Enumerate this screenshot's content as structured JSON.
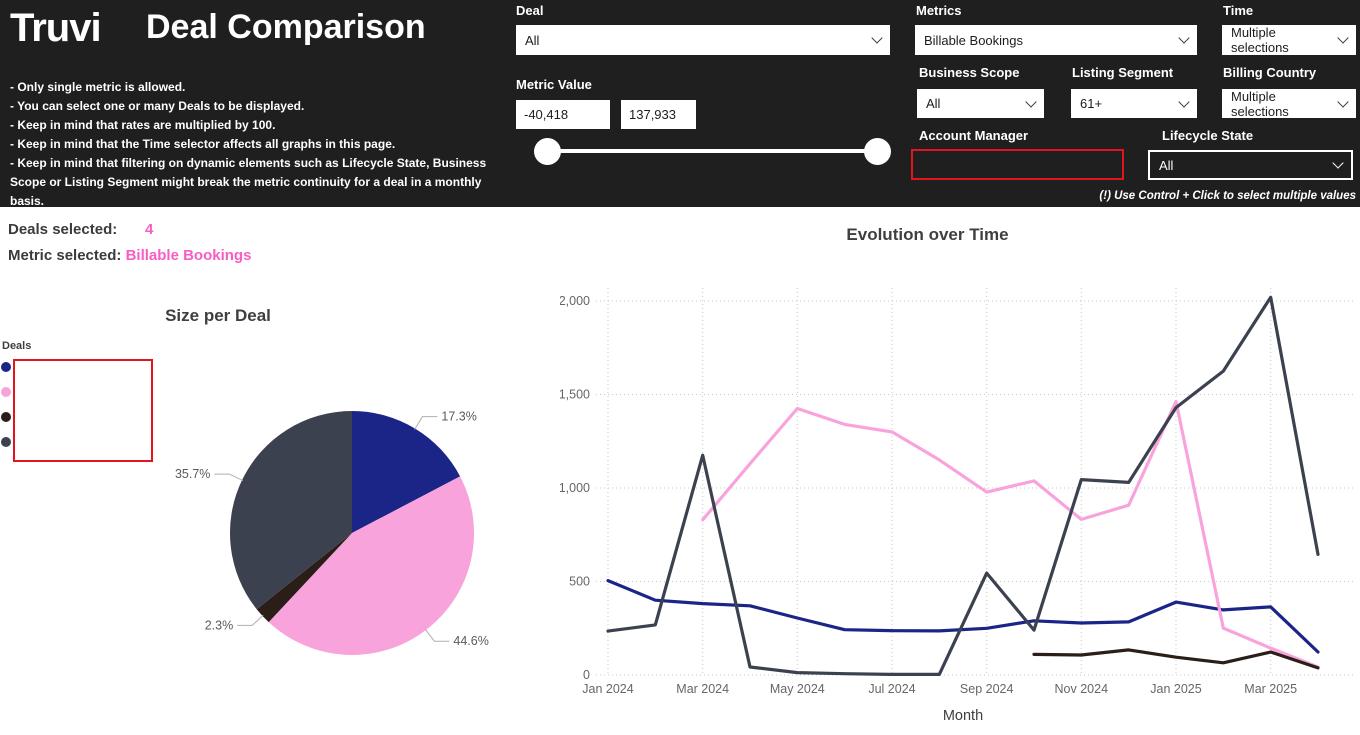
{
  "header": {
    "brand": "Truvi",
    "title": "Deal Comparison",
    "notes": [
      "- Only single metric is allowed.",
      "- You can select one or many Deals to be displayed.",
      "- Keep in mind that rates are multiplied by 100.",
      "- Keep in mind that the Time selector affects all graphs in this page.",
      "- Keep in mind that filtering on dynamic elements such as Lifecycle State, Business Scope or Listing Segment might break the metric continuity for a deal in a monthly basis."
    ],
    "multi_select_hint": "(!) Use Control + Click to select multiple values",
    "filters": {
      "deal": {
        "label": "Deal",
        "value": "All"
      },
      "metric_value": {
        "label": "Metric Value",
        "min": "-40,418",
        "max": "137,933"
      },
      "metrics": {
        "label": "Metrics",
        "value": "Billable Bookings"
      },
      "time": {
        "label": "Time",
        "value": "Multiple selections"
      },
      "business_scope": {
        "label": "Business Scope",
        "value": "All"
      },
      "listing_segment": {
        "label": "Listing Segment",
        "value": "61+"
      },
      "billing_country": {
        "label": "Billing Country",
        "value": "Multiple selections"
      },
      "account_manager": {
        "label": "Account Manager",
        "value": ""
      },
      "lifecycle_state": {
        "label": "Lifecycle State",
        "value": "All"
      }
    }
  },
  "summary": {
    "deals_selected_label": "Deals selected:",
    "deals_selected_value": "4",
    "metric_selected_label": "Metric selected:",
    "metric_selected_value": "Billable Bookings"
  },
  "colors": {
    "header_bg": "#1f1f1f",
    "accent_pink": "#f95cc5",
    "alert_red": "#e0161c",
    "grid": "#c9c9c9",
    "axis_text": "#666666"
  },
  "chart_data": [
    {
      "type": "pie",
      "title": "Size per Deal",
      "legend_title": "Deals",
      "legend_position": "left",
      "legend_labels_redacted": true,
      "labels": [
        "17.3%",
        "44.6%",
        "2.3%",
        "35.7%"
      ],
      "values": [
        17.3,
        44.6,
        2.3,
        35.7
      ],
      "colors": [
        "#1b2588",
        "#f9a3dc",
        "#2b1d17",
        "#3b414e"
      ]
    },
    {
      "type": "line",
      "title": "Evolution over Time",
      "xlabel": "Month",
      "x": [
        "Jan 2024",
        "Feb 2024",
        "Mar 2024",
        "Apr 2024",
        "May 2024",
        "Jun 2024",
        "Jul 2024",
        "Aug 2024",
        "Sep 2024",
        "Oct 2024",
        "Nov 2024",
        "Dec 2024",
        "Jan 2025",
        "Feb 2025",
        "Mar 2025",
        "Apr 2025"
      ],
      "x_tick_labels": [
        "Jan 2024",
        "Mar 2024",
        "May 2024",
        "Jul 2024",
        "Sep 2024",
        "Nov 2024",
        "Jan 2025",
        "Mar 2025"
      ],
      "yticks": [
        "0",
        "500",
        "1,000",
        "1,500",
        "2,000"
      ],
      "ytick_values": [
        0,
        500,
        1000,
        1500,
        2000
      ],
      "ylim": [
        0,
        2150
      ],
      "grid": true,
      "series": [
        {
          "name": "deal-navy",
          "color": "#1b2588",
          "values": [
            505,
            400,
            382,
            370,
            305,
            242,
            237,
            236,
            250,
            290,
            278,
            284,
            390,
            348,
            364,
            123
          ]
        },
        {
          "name": "deal-pink",
          "color": "#f9a3dc",
          "values": [
            null,
            null,
            830,
            1130,
            1425,
            1340,
            1300,
            1150,
            978,
            1038,
            832,
            908,
            1462,
            251,
            144,
            43
          ]
        },
        {
          "name": "deal-brown",
          "color": "#2b1d17",
          "values": [
            null,
            null,
            null,
            null,
            null,
            null,
            null,
            null,
            null,
            110,
            107,
            134,
            95,
            65,
            123,
            38
          ]
        },
        {
          "name": "deal-slate",
          "color": "#3b414e",
          "values": [
            235,
            268,
            1175,
            43,
            13,
            7,
            3,
            3,
            545,
            240,
            1045,
            1030,
            1430,
            1625,
            2020,
            645
          ]
        }
      ]
    }
  ]
}
